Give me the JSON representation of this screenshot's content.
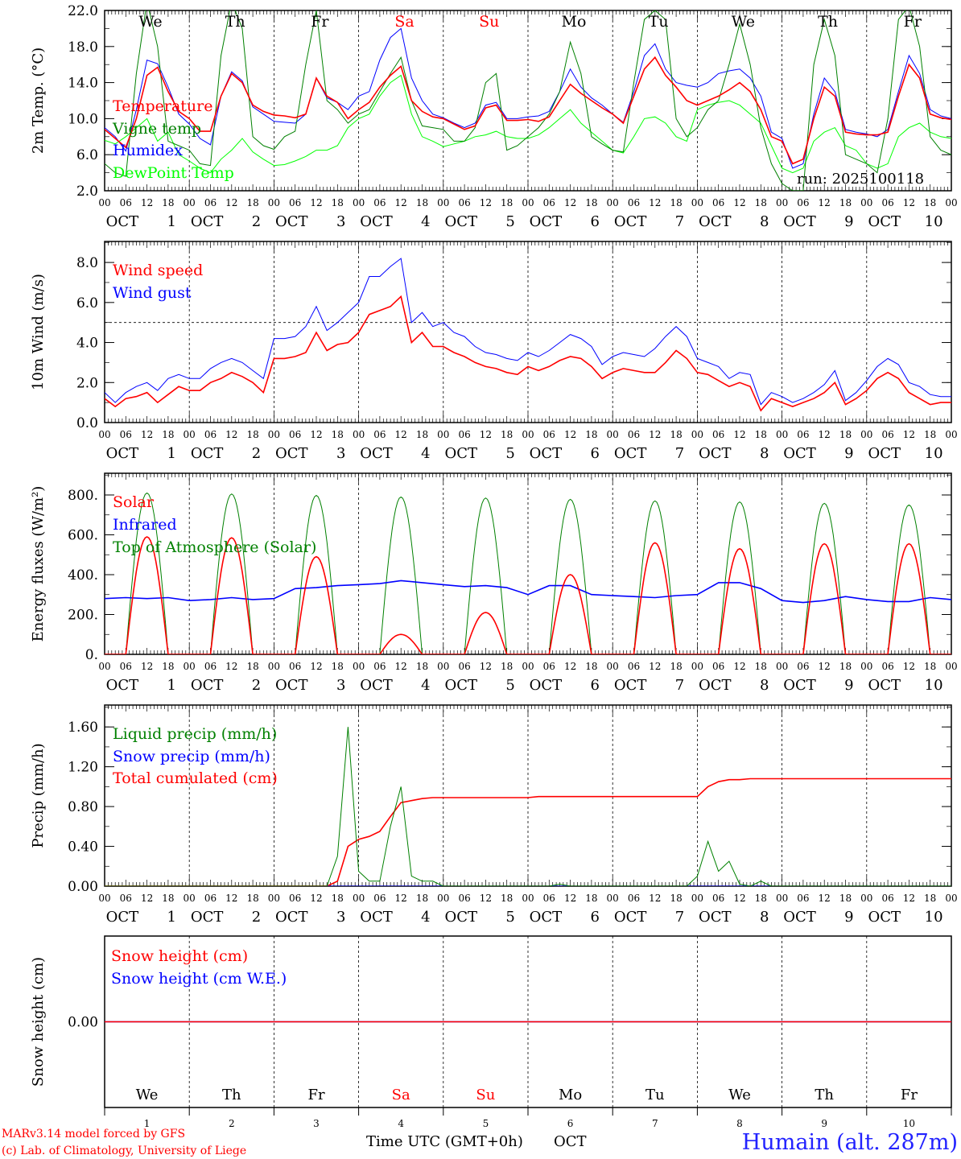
{
  "chart_data": [
    {
      "type": "line",
      "ylabel": "2m Temp. (°C)",
      "ylim": [
        2,
        22
      ],
      "yticks": [
        2,
        6,
        10,
        14,
        18,
        22
      ],
      "ytick_labels": [
        "2.0",
        "6.0",
        "10.0",
        "14.0",
        "18.0",
        "22.0"
      ],
      "x_step_hours": 3,
      "annotation": "run: 2025100118",
      "series": [
        {
          "name": "Temperature",
          "color": "#ff0000",
          "values": [
            8.8,
            7.8,
            6.8,
            10,
            14.8,
            15.7,
            13,
            10.8,
            10,
            8.6,
            8.6,
            12.5,
            15,
            14,
            11.5,
            10.8,
            10.4,
            10.3,
            10.1,
            10.5,
            14.5,
            12.5,
            11.8,
            10,
            11,
            11.8,
            13.5,
            14.8,
            15.8,
            12,
            10.8,
            10.2,
            10,
            9.4,
            8.8,
            9.2,
            11.2,
            11.5,
            9.8,
            9.8,
            9.9,
            9.7,
            10.2,
            12,
            13.8,
            12.8,
            12,
            11.2,
            10.5,
            9.5,
            12.5,
            15.5,
            16.8,
            14.8,
            13.5,
            12,
            11.5,
            12,
            12.5,
            13.2,
            14,
            13,
            11,
            8,
            7.5,
            5,
            5.5,
            10,
            13.5,
            12.5,
            8.5,
            8.3,
            8.2,
            8.2,
            8.5,
            12.5,
            16,
            14.5,
            10.5,
            10.1,
            9.9
          ]
        },
        {
          "name": "Vigne temp",
          "color": "#008000",
          "values": [
            5,
            4,
            3.6,
            15,
            23,
            18,
            7.5,
            7,
            6.5,
            5,
            4.8,
            17,
            23,
            20,
            8,
            7,
            6.6,
            8,
            8.6,
            16,
            22,
            12,
            11,
            9.5,
            10.5,
            11,
            13,
            15,
            16.8,
            12,
            9.2,
            9,
            8.8,
            7.5,
            7.5,
            9,
            14,
            15,
            6.5,
            7,
            8,
            9,
            10.5,
            13,
            18.5,
            15,
            8,
            7.2,
            6.5,
            6.3,
            14,
            21,
            22,
            21,
            10,
            8,
            9,
            11,
            12,
            16,
            20.5,
            16,
            9,
            5,
            2.8,
            2,
            2,
            16,
            21,
            17,
            6,
            5.5,
            5,
            4,
            10,
            21,
            22.5,
            18,
            8,
            6.5,
            6
          ]
        },
        {
          "name": "Humidex",
          "color": "#0000ff",
          "values": [
            9,
            8,
            6.4,
            11,
            16.5,
            16.1,
            13.5,
            10.5,
            9.4,
            7.8,
            7.1,
            12.5,
            15.2,
            14.2,
            11.3,
            10.5,
            9.7,
            9.6,
            9.5,
            10.5,
            14.5,
            12.3,
            11.8,
            11,
            12.5,
            13,
            16.5,
            19,
            20,
            14.5,
            12,
            10.5,
            10.1,
            9.5,
            9,
            9.5,
            11.5,
            11.8,
            10,
            10,
            10.2,
            10.3,
            10.8,
            13,
            15.5,
            13.5,
            12.3,
            11.5,
            10.5,
            9.6,
            13,
            17,
            18.3,
            15.5,
            14,
            13.7,
            13.5,
            14,
            15,
            15.3,
            15.5,
            14.5,
            12.5,
            8.5,
            7.8,
            4.5,
            5,
            10.5,
            14.5,
            13,
            8.8,
            8.5,
            8.3,
            8,
            8.8,
            13,
            17,
            15,
            11,
            10.3,
            10
          ]
        },
        {
          "name": "DewPoint Temp",
          "color": "#00ff00",
          "values": [
            7.6,
            7.2,
            8,
            9,
            10,
            7.5,
            8.5,
            6,
            5.3,
            4.5,
            4,
            5.5,
            6.5,
            7.8,
            6.3,
            5.5,
            4.8,
            4.9,
            5.3,
            5.8,
            6.5,
            6.5,
            7,
            9,
            10,
            10.5,
            12.5,
            14,
            14.8,
            10.5,
            8,
            7.5,
            6.9,
            7.2,
            7.5,
            8,
            8.2,
            8.6,
            8,
            7.8,
            7.8,
            8.2,
            9,
            10,
            11,
            9.5,
            8.5,
            7.5,
            6.5,
            6.2,
            8,
            10,
            10.2,
            9.5,
            8,
            7.5,
            11,
            11.5,
            11.8,
            12,
            11.5,
            10.5,
            9.5,
            7,
            4.5,
            4,
            4.5,
            7.5,
            8.5,
            9,
            7,
            6.5,
            5,
            4.5,
            5,
            8,
            9,
            9.5,
            8.5,
            8,
            7.8
          ]
        }
      ]
    },
    {
      "type": "line",
      "ylabel": "10m Wind (m/s)",
      "ylim": [
        0,
        9.05
      ],
      "yticks": [
        0,
        2,
        4,
        6,
        8
      ],
      "ytick_labels": [
        "0.0",
        "2.0",
        "4.0",
        "6.0",
        "8.0"
      ],
      "reference_line": 5.0,
      "x_step_hours": 3,
      "series": [
        {
          "name": "Wind speed",
          "color": "#ff0000",
          "values": [
            1.2,
            0.8,
            1.2,
            1.3,
            1.5,
            1.0,
            1.4,
            1.8,
            1.6,
            1.6,
            2.0,
            2.2,
            2.5,
            2.3,
            2.0,
            1.5,
            3.2,
            3.2,
            3.3,
            3.5,
            4.5,
            3.6,
            3.9,
            4.0,
            4.5,
            5.4,
            5.6,
            5.8,
            6.3,
            4.0,
            4.5,
            3.8,
            3.8,
            3.5,
            3.3,
            3.0,
            2.8,
            2.7,
            2.5,
            2.4,
            2.8,
            2.6,
            2.8,
            3.1,
            3.3,
            3.2,
            2.8,
            2.2,
            2.5,
            2.7,
            2.6,
            2.5,
            2.5,
            3.0,
            3.6,
            3.2,
            2.5,
            2.4,
            2.1,
            1.8,
            2.0,
            1.8,
            0.6,
            1.2,
            1.0,
            0.8,
            1.0,
            1.2,
            1.5,
            2.0,
            0.9,
            1.2,
            1.6,
            2.2,
            2.5,
            2.2,
            1.5,
            1.2,
            0.9,
            1.0,
            1.0
          ]
        },
        {
          "name": "Wind gust",
          "color": "#0000ff",
          "values": [
            1.5,
            1.0,
            1.5,
            1.8,
            2.0,
            1.6,
            2.2,
            2.4,
            2.2,
            2.2,
            2.7,
            3.0,
            3.2,
            3.0,
            2.6,
            2.2,
            4.2,
            4.2,
            4.3,
            4.8,
            5.8,
            4.6,
            5.0,
            5.5,
            6.0,
            7.3,
            7.3,
            7.8,
            8.2,
            5.0,
            5.5,
            4.8,
            5.0,
            4.5,
            4.3,
            3.8,
            3.5,
            3.4,
            3.2,
            3.1,
            3.5,
            3.3,
            3.6,
            4.0,
            4.4,
            4.2,
            3.8,
            2.9,
            3.3,
            3.5,
            3.4,
            3.3,
            3.7,
            4.3,
            4.8,
            4.3,
            3.2,
            3.0,
            2.8,
            2.2,
            2.5,
            2.4,
            0.9,
            1.5,
            1.3,
            1.0,
            1.2,
            1.5,
            1.9,
            2.6,
            1.1,
            1.5,
            2.1,
            2.8,
            3.2,
            2.9,
            2.0,
            1.8,
            1.4,
            1.3,
            1.3
          ]
        }
      ]
    },
    {
      "type": "line",
      "ylabel": "Energy fluxes (W/m²)",
      "ylim": [
        0,
        909
      ],
      "yticks": [
        0,
        200,
        400,
        600,
        800
      ],
      "ytick_labels": [
        "0.",
        "200.",
        "400.",
        "600.",
        "800."
      ],
      "daylight_hours_utc": [
        6,
        18
      ],
      "series": [
        {
          "name": "Solar",
          "color": "#ff0000",
          "daily_peak": [
            590,
            585,
            490,
            100,
            210,
            400,
            560,
            530,
            555,
            555
          ]
        },
        {
          "name": "Infrared",
          "color": "#0000ff",
          "x_step_hours": 6,
          "values": [
            280,
            285,
            280,
            285,
            270,
            275,
            285,
            275,
            280,
            330,
            335,
            345,
            350,
            355,
            370,
            360,
            350,
            340,
            345,
            335,
            300,
            345,
            345,
            300,
            295,
            290,
            285,
            295,
            300,
            360,
            360,
            330,
            270,
            260,
            270,
            290,
            275,
            265,
            265,
            285,
            275
          ]
        },
        {
          "name": "Top of Atmosphere (Solar)",
          "color": "#008000",
          "daily_peak": [
            810,
            805,
            798,
            790,
            785,
            778,
            770,
            765,
            758,
            750
          ]
        }
      ]
    },
    {
      "type": "line",
      "ylabel": "Precip (mm/h)",
      "ylim": [
        0,
        1.82
      ],
      "yticks": [
        0,
        0.4,
        0.8,
        1.2,
        1.6
      ],
      "ytick_labels": [
        "0.00",
        "0.40",
        "0.80",
        "1.20",
        "1.60"
      ],
      "x_step_hours": 3,
      "series": [
        {
          "name": "Liquid precip (mm/h)",
          "color": "#008000",
          "values": [
            0,
            0,
            0,
            0,
            0,
            0,
            0,
            0,
            0,
            0,
            0,
            0,
            0,
            0,
            0,
            0,
            0,
            0,
            0,
            0,
            0,
            0,
            0.3,
            1.6,
            0.15,
            0.05,
            0.05,
            0.6,
            1.0,
            0.1,
            0.05,
            0.05,
            0,
            0,
            0,
            0,
            0,
            0,
            0,
            0,
            0,
            0,
            0,
            0.02,
            0,
            0,
            0,
            0,
            0,
            0,
            0,
            0,
            0,
            0,
            0,
            0,
            0.1,
            0.45,
            0.15,
            0.25,
            0.02,
            0,
            0.05,
            0,
            0,
            0,
            0,
            0,
            0,
            0,
            0,
            0,
            0,
            0,
            0,
            0,
            0,
            0,
            0,
            0,
            0
          ]
        },
        {
          "name": "Snow precip (mm/h)",
          "color": "#0000ff",
          "values": [
            0,
            0,
            0,
            0,
            0,
            0,
            0,
            0,
            0,
            0,
            0,
            0,
            0,
            0,
            0,
            0,
            0,
            0,
            0,
            0,
            0,
            0,
            0,
            0,
            0,
            0,
            0,
            0,
            0,
            0,
            0,
            0,
            0,
            0,
            0,
            0,
            0,
            0,
            0,
            0,
            0,
            0,
            0,
            0,
            0,
            0,
            0,
            0,
            0,
            0,
            0,
            0,
            0,
            0,
            0,
            0,
            0,
            0,
            0,
            0,
            0,
            0,
            0,
            0,
            0,
            0,
            0,
            0,
            0,
            0,
            0,
            0,
            0,
            0,
            0,
            0,
            0,
            0,
            0,
            0,
            0
          ]
        },
        {
          "name": "Total cumulated (cm)",
          "color": "#ff0000",
          "values": [
            0,
            0,
            0,
            0,
            0,
            0,
            0,
            0,
            0,
            0,
            0,
            0,
            0,
            0,
            0,
            0,
            0,
            0,
            0,
            0,
            0,
            0,
            0.05,
            0.4,
            0.47,
            0.5,
            0.55,
            0.7,
            0.84,
            0.86,
            0.88,
            0.89,
            0.89,
            0.89,
            0.89,
            0.89,
            0.89,
            0.89,
            0.89,
            0.89,
            0.89,
            0.9,
            0.9,
            0.9,
            0.9,
            0.9,
            0.9,
            0.9,
            0.9,
            0.9,
            0.9,
            0.9,
            0.9,
            0.9,
            0.9,
            0.9,
            0.9,
            1.0,
            1.05,
            1.07,
            1.07,
            1.08,
            1.08,
            1.08,
            1.08,
            1.08,
            1.08,
            1.08,
            1.08,
            1.08,
            1.08,
            1.08,
            1.08,
            1.08,
            1.08,
            1.08,
            1.08,
            1.08,
            1.08,
            1.08,
            1.08
          ]
        }
      ]
    },
    {
      "type": "line",
      "ylabel": "Snow height (cm)",
      "ylim": [
        -1,
        1
      ],
      "yticks": [
        0
      ],
      "ytick_labels": [
        "0.00"
      ],
      "x_step_hours": 240,
      "series": [
        {
          "name": "Snow height (cm)",
          "color": "#ff0000",
          "values": [
            0,
            0
          ]
        },
        {
          "name": "Snow height (cm W.E.)",
          "color": "#0000ff",
          "values": [
            0,
            0
          ]
        }
      ]
    }
  ],
  "x_axis": {
    "hour_labels": [
      "00",
      "06",
      "12",
      "18"
    ],
    "final_hour_label": "00",
    "month": "OCT",
    "days": [
      "1",
      "2",
      "3",
      "4",
      "5",
      "6",
      "7",
      "8",
      "9",
      "10"
    ],
    "weekdays": [
      "We",
      "Th",
      "Fr",
      "Sa",
      "Su",
      "Mo",
      "Tu",
      "We",
      "Th",
      "Fr"
    ],
    "weekend_color": "#ff0000",
    "xlabel": "Time UTC (GMT+0h)"
  },
  "footer": {
    "model": "MARv3.14 model forced by GFS",
    "credit": "(c) Lab. of Climatology, University of Liege",
    "station": "Humain (alt. 287m)"
  }
}
